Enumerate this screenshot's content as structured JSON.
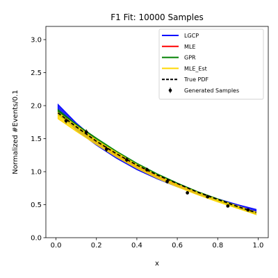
{
  "chart_data": {
    "type": "line",
    "title": "F1 Fit: 10000 Samples",
    "xlabel": "x",
    "ylabel": "Normalized #Events/0.1",
    "xlim": [
      -0.05,
      1.05
    ],
    "ylim": [
      0.0,
      3.2
    ],
    "xticks": [
      "0.0",
      "0.2",
      "0.4",
      "0.6",
      "0.8",
      "1.0"
    ],
    "yticks": [
      "0.0",
      "0.5",
      "1.0",
      "1.5",
      "2.0",
      "2.5",
      "3.0"
    ],
    "legend_position": "top-right",
    "series": [
      {
        "name": "LGCP",
        "color": "#0000ff",
        "style": "band",
        "x": [
          0.01,
          0.1,
          0.2,
          0.3,
          0.4,
          0.5,
          0.6,
          0.7,
          0.8,
          0.9,
          0.99
        ],
        "lower": [
          1.9,
          1.63,
          1.4,
          1.2,
          1.03,
          0.89,
          0.77,
          0.66,
          0.56,
          0.47,
          0.4
        ],
        "upper": [
          2.02,
          1.74,
          1.48,
          1.27,
          1.09,
          0.94,
          0.8,
          0.69,
          0.59,
          0.5,
          0.43
        ]
      },
      {
        "name": "MLE",
        "color": "#ff0000",
        "style": "line",
        "x": [
          0.01,
          0.1,
          0.2,
          0.3,
          0.4,
          0.5,
          0.6,
          0.7,
          0.8,
          0.9,
          0.99
        ],
        "y": [
          1.89,
          1.67,
          1.45,
          1.25,
          1.08,
          0.93,
          0.8,
          0.68,
          0.57,
          0.46,
          0.37
        ]
      },
      {
        "name": "GPR",
        "color": "#008000",
        "style": "band",
        "x": [
          0.01,
          0.1,
          0.2,
          0.3,
          0.4,
          0.5,
          0.6,
          0.7,
          0.8,
          0.9,
          0.99
        ],
        "lower": [
          1.86,
          1.66,
          1.46,
          1.27,
          1.1,
          0.95,
          0.81,
          0.68,
          0.56,
          0.45,
          0.35
        ],
        "upper": [
          1.94,
          1.72,
          1.51,
          1.31,
          1.13,
          0.97,
          0.83,
          0.7,
          0.59,
          0.48,
          0.38
        ]
      },
      {
        "name": "MLE_Est",
        "color": "#ffd700",
        "style": "band",
        "x": [
          0.01,
          0.1,
          0.2,
          0.3,
          0.4,
          0.5,
          0.6,
          0.7,
          0.8,
          0.9,
          0.99
        ],
        "lower": [
          1.8,
          1.61,
          1.41,
          1.22,
          1.05,
          0.9,
          0.77,
          0.65,
          0.54,
          0.44,
          0.35
        ],
        "upper": [
          1.9,
          1.7,
          1.48,
          1.29,
          1.11,
          0.95,
          0.81,
          0.69,
          0.58,
          0.48,
          0.39
        ]
      },
      {
        "name": "True PDF",
        "color": "#000000",
        "style": "dashed",
        "x": [
          0.01,
          0.1,
          0.2,
          0.3,
          0.4,
          0.5,
          0.6,
          0.7,
          0.8,
          0.9,
          0.99
        ],
        "y": [
          1.89,
          1.68,
          1.46,
          1.27,
          1.1,
          0.95,
          0.82,
          0.69,
          0.58,
          0.47,
          0.38
        ]
      },
      {
        "name": "Generated Samples",
        "color": "#000000",
        "style": "errorbar",
        "x": [
          0.05,
          0.15,
          0.25,
          0.35,
          0.45,
          0.55,
          0.65,
          0.75,
          0.85,
          0.95
        ],
        "y": [
          1.77,
          1.6,
          1.34,
          1.18,
          1.03,
          0.85,
          0.68,
          0.62,
          0.48,
          0.42
        ],
        "err": [
          0.04,
          0.04,
          0.04,
          0.035,
          0.03,
          0.03,
          0.025,
          0.025,
          0.02,
          0.02
        ]
      }
    ]
  }
}
